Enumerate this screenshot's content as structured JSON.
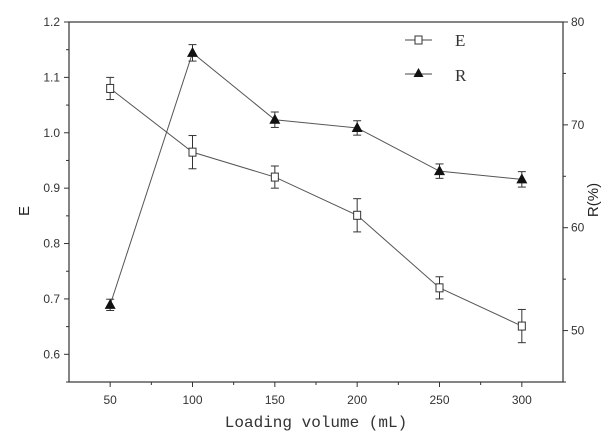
{
  "chart_data": {
    "type": "line",
    "title": "",
    "xlabel": "Loading volume (mL)",
    "ylabel": "E",
    "y2label": "R(%)",
    "x": [
      50,
      100,
      150,
      200,
      250,
      300
    ],
    "xlim": [
      25,
      325
    ],
    "ylim": [
      0.55,
      1.2
    ],
    "y2lim": [
      45,
      80
    ],
    "xticks": [
      50,
      100,
      150,
      200,
      250,
      300
    ],
    "yticks": [
      "0.6",
      "0.7",
      "0.8",
      "0.9",
      "1.0",
      "1.1",
      "1.2"
    ],
    "y2ticks": [
      "50",
      "60",
      "70",
      "80"
    ],
    "grid": false,
    "legend_position": "top-right",
    "series": [
      {
        "name": "E",
        "axis": "left",
        "marker": "open-square",
        "values": [
          1.08,
          0.965,
          0.92,
          0.851,
          0.72,
          0.651
        ],
        "errors": [
          0.02,
          0.03,
          0.02,
          0.03,
          0.02,
          0.03
        ]
      },
      {
        "name": "R",
        "axis": "right",
        "marker": "filled-triangle",
        "values": [
          52.5,
          77.0,
          70.5,
          69.7,
          65.5,
          64.7
        ],
        "errors": [
          0.55,
          0.8,
          0.75,
          0.7,
          0.7,
          0.75
        ]
      }
    ]
  }
}
